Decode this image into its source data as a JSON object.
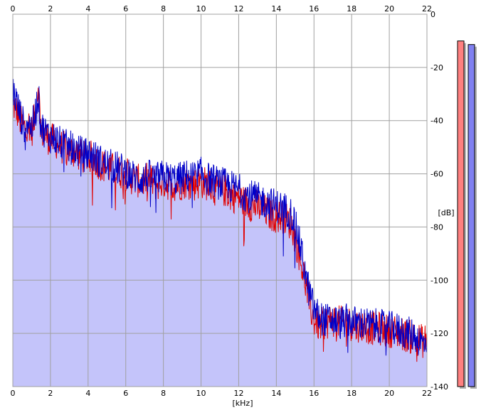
{
  "chart_data": {
    "type": "area",
    "title": "",
    "xlabel": "[kHz]",
    "ylabel": "[dB]",
    "xlim": [
      0,
      22
    ],
    "ylim": [
      -140,
      0
    ],
    "x_ticks": [
      0,
      2,
      4,
      6,
      8,
      10,
      12,
      14,
      16,
      18,
      20,
      22
    ],
    "y_ticks": [
      0,
      -20,
      -40,
      -60,
      -80,
      -100,
      -120,
      -140
    ],
    "y_tick_labels": [
      "0",
      "-20",
      "-40",
      "-60",
      "-80",
      "-100",
      "-120",
      "-140"
    ],
    "grid": true,
    "series": [
      {
        "color": "#e00000",
        "x": [
          0,
          0.2,
          0.4,
          0.6,
          0.8,
          1.0,
          1.2,
          1.35,
          1.5,
          1.8,
          2.0,
          2.3,
          2.6,
          3.0,
          3.4,
          3.8,
          4.0,
          4.4,
          4.8,
          5.2,
          5.6,
          6.0,
          6.4,
          6.8,
          7.2,
          7.6,
          8.0,
          8.4,
          8.8,
          9.2,
          9.6,
          10.0,
          10.4,
          10.8,
          11.2,
          11.6,
          12.0,
          12.4,
          12.8,
          13.2,
          13.6,
          14.0,
          14.4,
          14.8,
          15.0,
          15.2,
          15.4,
          15.6,
          15.8,
          16.0,
          16.3,
          16.6,
          17.0,
          17.4,
          17.8,
          18.2,
          18.6,
          19.0,
          19.4,
          19.8,
          20.2,
          20.6,
          21.0,
          21.4,
          21.8,
          22.0
        ],
        "values": [
          -34,
          -36,
          -40,
          -43,
          -41,
          -44,
          -38,
          -26,
          -44,
          -46,
          -47,
          -48,
          -50,
          -51,
          -52,
          -54,
          -53,
          -55,
          -57,
          -58,
          -59,
          -60,
          -62,
          -63,
          -62,
          -64,
          -63,
          -64,
          -64,
          -63,
          -64,
          -63,
          -64,
          -66,
          -66,
          -68,
          -69,
          -71,
          -72,
          -73,
          -75,
          -76,
          -76,
          -79,
          -84,
          -90,
          -96,
          -103,
          -110,
          -115,
          -117,
          -116,
          -115,
          -116,
          -116,
          -117,
          -117,
          -118,
          -118,
          -119,
          -119,
          -120,
          -121,
          -122,
          -123,
          -122
        ]
      },
      {
        "color": "#0000c8",
        "x": [
          0,
          0.2,
          0.4,
          0.6,
          0.8,
          1.0,
          1.2,
          1.35,
          1.5,
          1.8,
          2.0,
          2.3,
          2.6,
          3.0,
          3.4,
          3.8,
          4.0,
          4.4,
          4.8,
          5.2,
          5.6,
          6.0,
          6.4,
          6.8,
          7.2,
          7.6,
          8.0,
          8.4,
          8.8,
          9.2,
          9.6,
          10.0,
          10.4,
          10.8,
          11.2,
          11.6,
          12.0,
          12.4,
          12.8,
          13.2,
          13.6,
          14.0,
          14.4,
          14.8,
          15.0,
          15.2,
          15.4,
          15.6,
          15.8,
          16.0,
          16.3,
          16.6,
          17.0,
          17.4,
          17.8,
          18.2,
          18.6,
          19.0,
          19.4,
          19.8,
          20.2,
          20.6,
          21.0,
          21.4,
          21.8,
          22.0
        ],
        "values": [
          -28,
          -33,
          -38,
          -42,
          -40,
          -43,
          -37,
          -30,
          -42,
          -45,
          -46,
          -47,
          -49,
          -50,
          -51,
          -53,
          -52,
          -54,
          -56,
          -57,
          -58,
          -59,
          -61,
          -62,
          -61,
          -62,
          -61,
          -62,
          -62,
          -61,
          -61,
          -60,
          -62,
          -63,
          -64,
          -65,
          -66,
          -68,
          -69,
          -70,
          -71,
          -72,
          -73,
          -75,
          -79,
          -85,
          -92,
          -100,
          -106,
          -111,
          -114,
          -115,
          -115,
          -116,
          -115,
          -116,
          -116,
          -117,
          -117,
          -118,
          -118,
          -119,
          -120,
          -121,
          -124,
          -122
        ]
      }
    ],
    "level_meters": [
      {
        "color": "#ff8080",
        "level": 0.965
      },
      {
        "color": "#8080f0",
        "level": 0.955
      }
    ]
  }
}
